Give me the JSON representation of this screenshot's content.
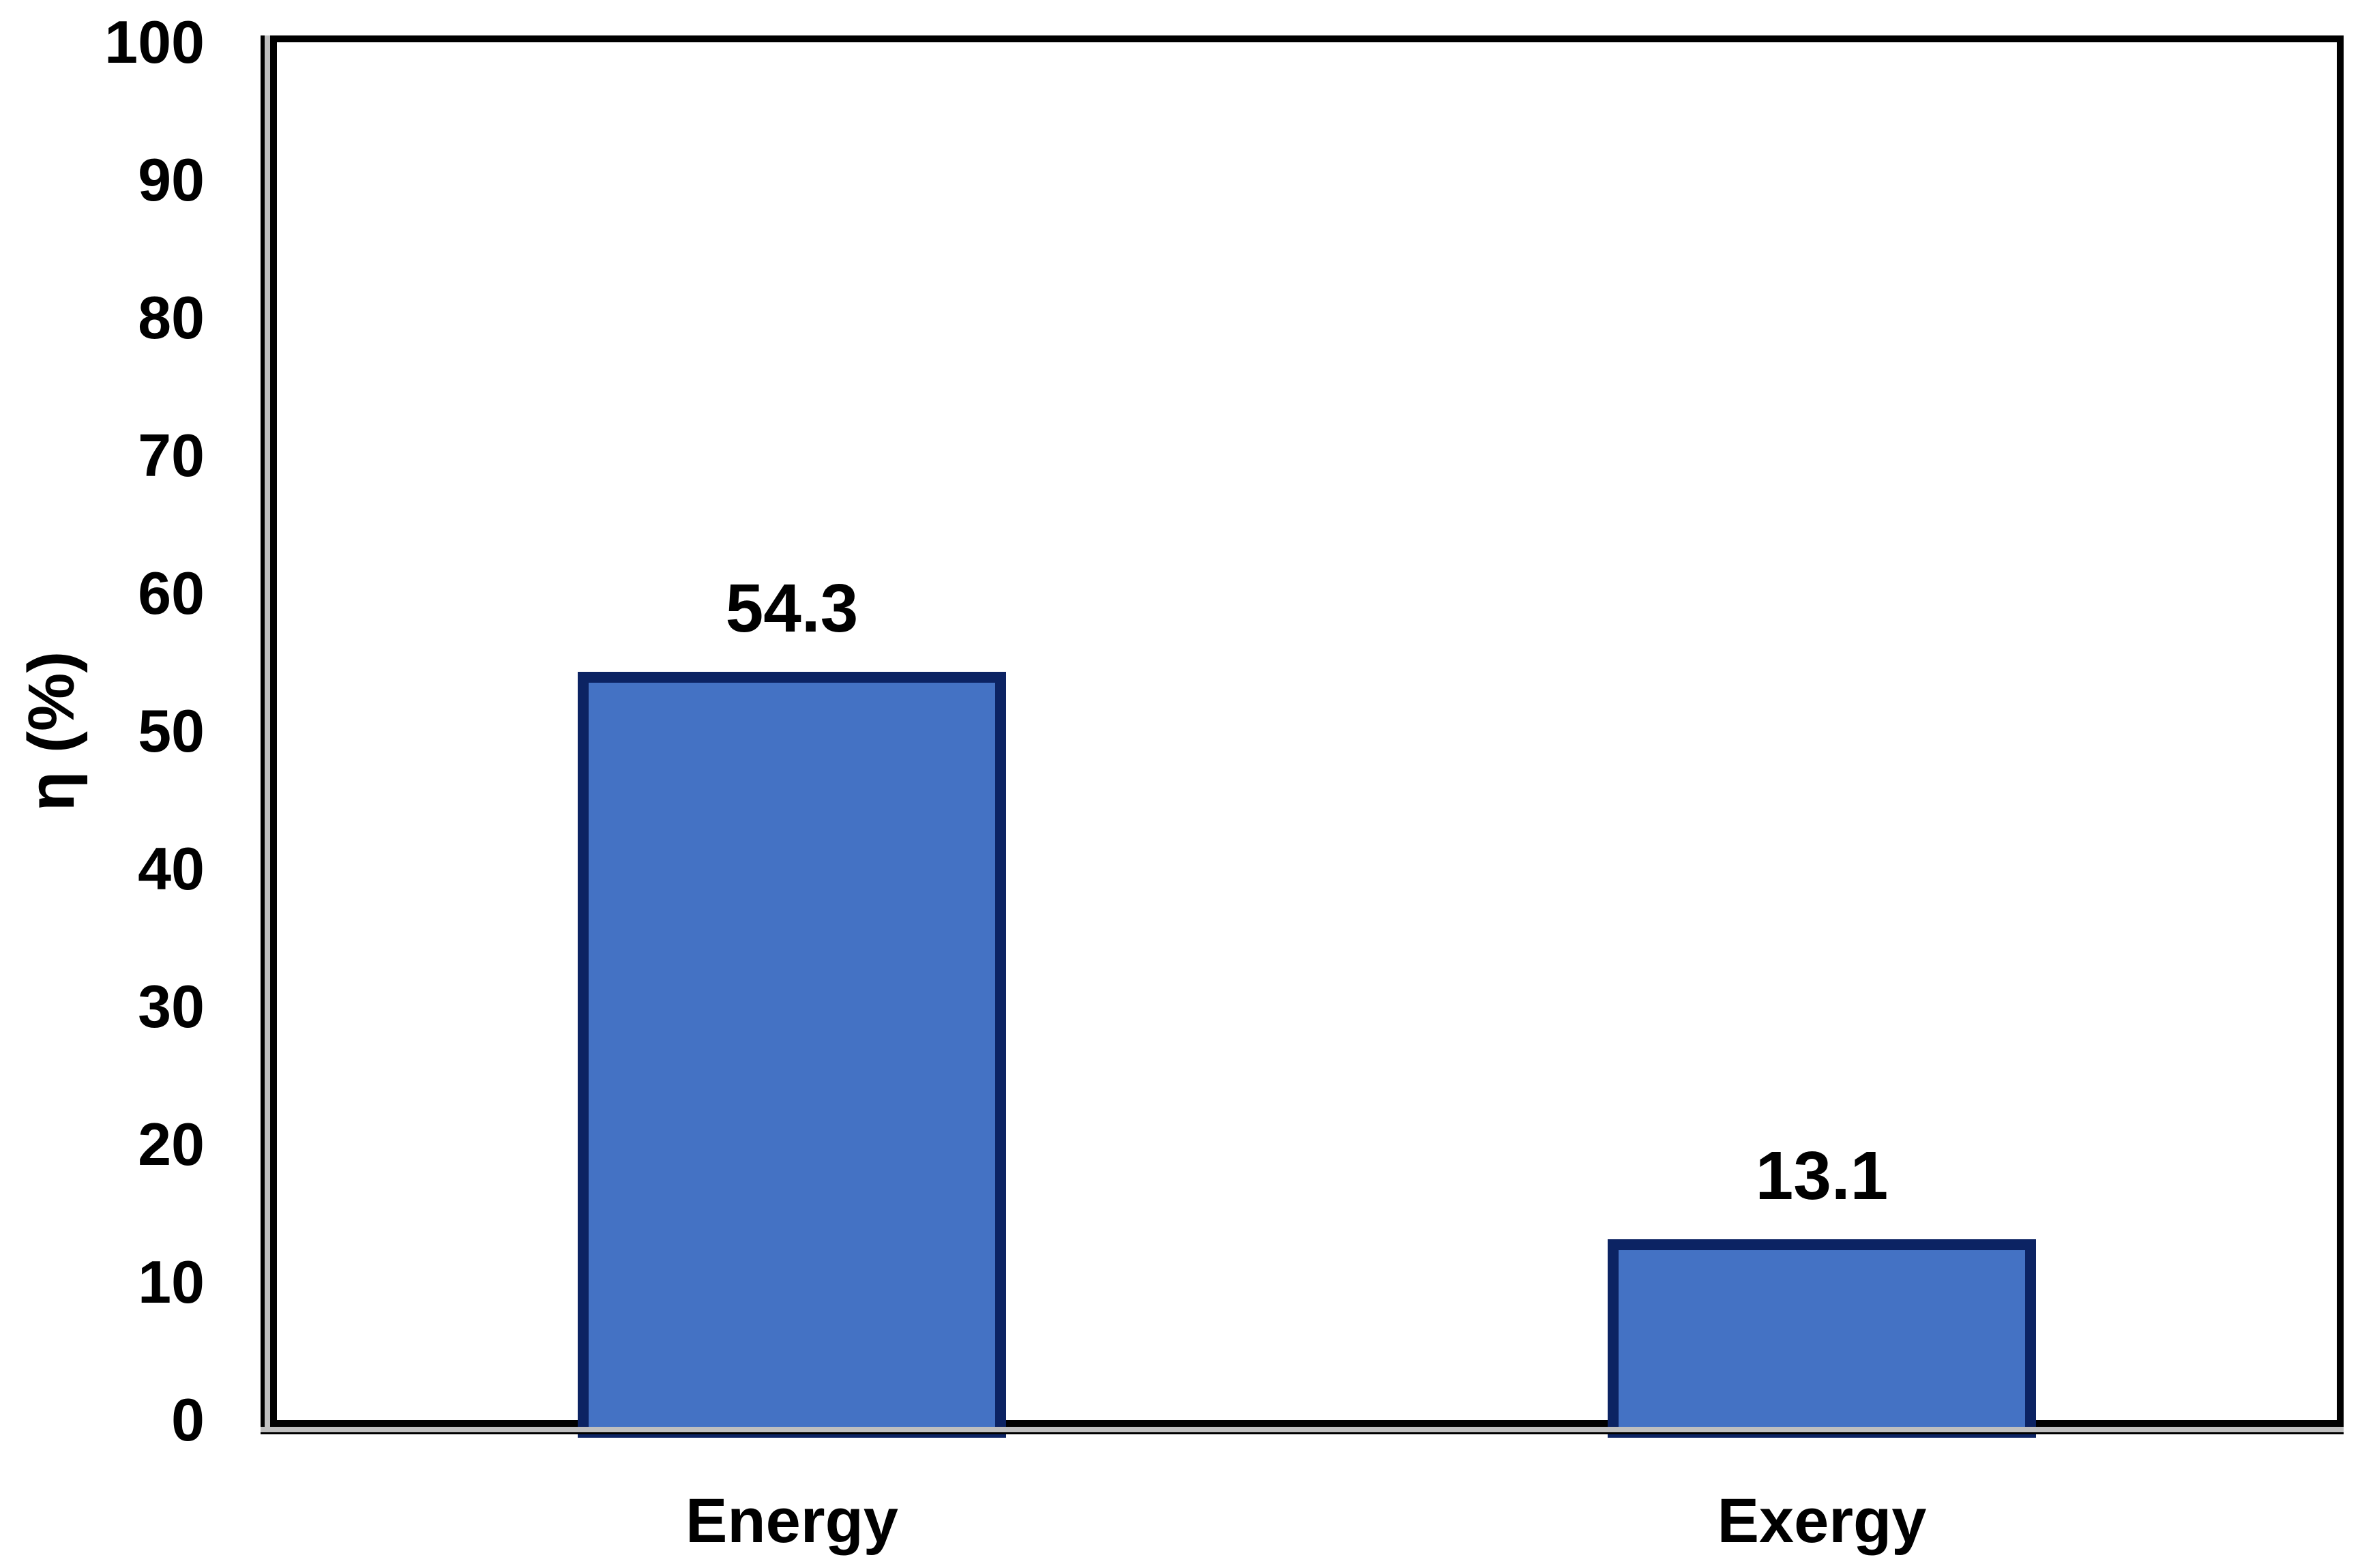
{
  "chart_data": {
    "type": "bar",
    "categories": [
      "Energy",
      "Exergy"
    ],
    "values": [
      54.3,
      13.1
    ],
    "data_labels": [
      "54.3",
      "13.1"
    ],
    "title": "",
    "xlabel": "",
    "ylabel": "η (%)",
    "ylim": [
      0,
      100
    ],
    "yticks": [
      0,
      10,
      20,
      30,
      40,
      50,
      60,
      70,
      80,
      90,
      100
    ],
    "grid": "off",
    "legend": "none",
    "bar_fill_color": "#4472C4",
    "bar_border_color": "#0c2363",
    "plot_border_color": "#000000",
    "axis_line_color": "#bfbfbf",
    "text_color": "#000000",
    "background_color": "#ffffff"
  }
}
